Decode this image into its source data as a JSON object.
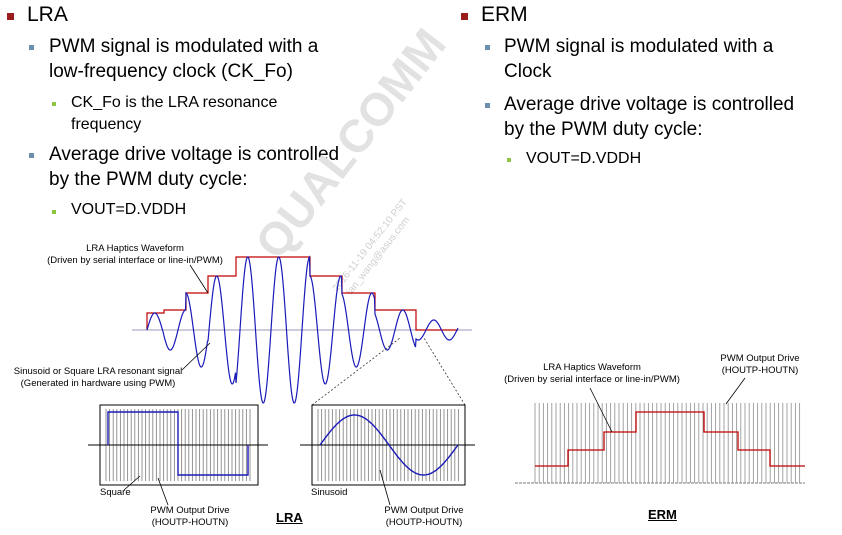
{
  "left": {
    "heading": "LRA",
    "bullet1": "PWM signal is modulated with a low-frequency clock (CK_Fo)",
    "bullet1_line1": "PWM signal is modulated with a",
    "bullet1_line2": "low-frequency clock (CK_Fo)",
    "sub1_line1": "CK_Fo is the LRA resonance",
    "sub1_line2": "frequency",
    "bullet2_line1": "Average drive voltage is controlled",
    "bullet2_line2": "by the PWM duty cycle:",
    "sub2": "VOUT=D.VDDH"
  },
  "right": {
    "heading": "ERM",
    "bullet1_line1": "PWM signal is modulated with a",
    "bullet1_line2": "Clock",
    "bullet2_line1": "Average drive voltage is controlled",
    "bullet2_line2": "by the PWM duty cycle:",
    "sub1": "VOUT=D.VDDH"
  },
  "lra_diagram": {
    "waveform_label_line1": "LRA Haptics Waveform",
    "waveform_label_line2": "(Driven by serial interface or line-in/PWM)",
    "resonant_label_line1": "Sinusoid or Square LRA resonant signal",
    "resonant_label_line2": "(Generated in hardware using PWM)",
    "square_label": "Square",
    "sinusoid_label": "Sinusoid",
    "pwm_label_a_line1": "PWM Output Drive",
    "pwm_label_a_line2": "(HOUTP-HOUTN)",
    "pwm_label_b_line1": "PWM Output Drive",
    "pwm_label_b_line2": "(HOUTP-HOUTN)",
    "caption": "LRA"
  },
  "erm_diagram": {
    "waveform_label_line1": "LRA Haptics Waveform",
    "waveform_label_line2": "(Driven by serial interface or line-in/PWM)",
    "pwm_label_line1": "PWM Output Drive",
    "pwm_label_line2": "(HOUTP-HOUTN)",
    "caption": "ERM"
  },
  "watermark": {
    "logo": "QUALCOMM",
    "line1": "2016-11-19 04:52:10 PST",
    "line2": "ian_wang@asus.com"
  },
  "colors": {
    "bullet_l1": "#9b1c1c",
    "bullet_l2": "#6d8fae",
    "bullet_l3": "#8cc63f",
    "envelope": "#c00000",
    "sine": "#1a1ab8"
  }
}
